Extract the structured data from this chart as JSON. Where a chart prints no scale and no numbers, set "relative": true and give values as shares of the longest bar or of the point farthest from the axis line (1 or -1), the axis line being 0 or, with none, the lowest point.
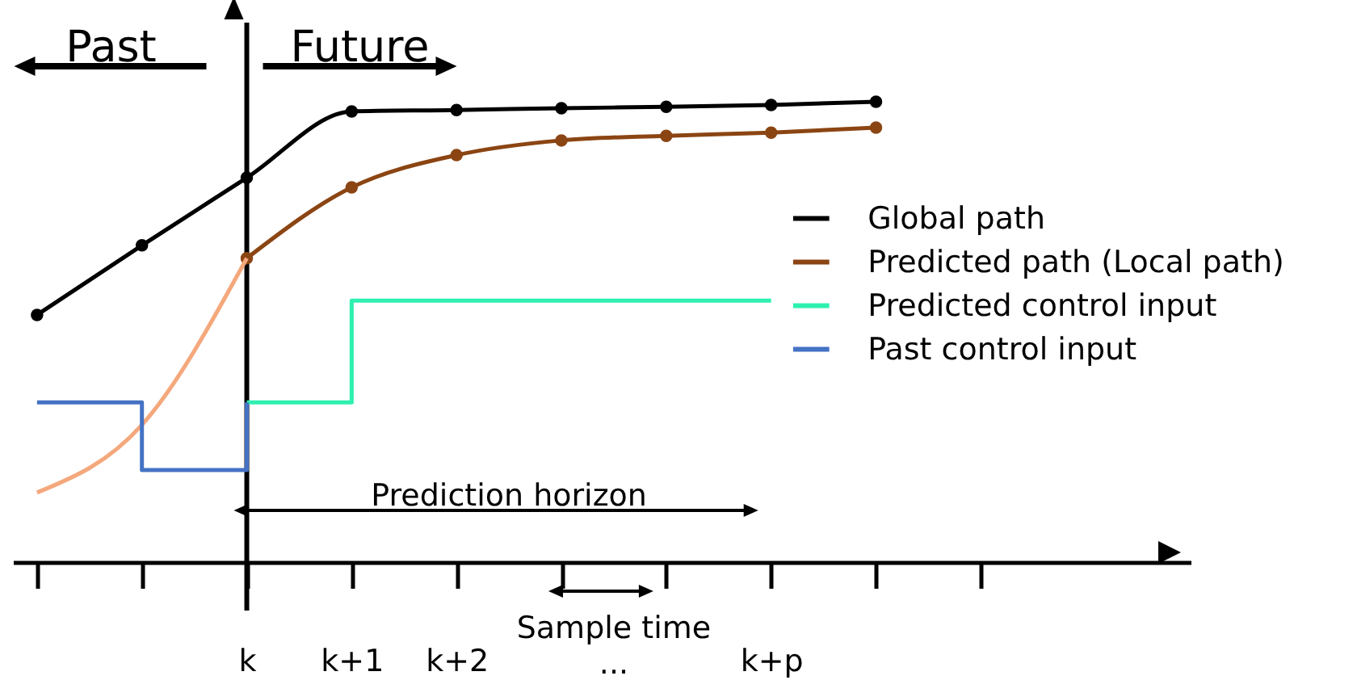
{
  "chart_data": {
    "type": "line",
    "relative": true,
    "marker": "circle",
    "line_style": "solid",
    "legend": "right",
    "grid": false,
    "categories": [
      null,
      null,
      "k",
      "k+1",
      "k+2",
      null,
      null,
      "k+p",
      null,
      null
    ],
    "ref_lines": [
      {
        "axis": "x",
        "value": "k",
        "color": "#000000"
      }
    ],
    "annotations": [
      "Past",
      "Future",
      "Prediction horizon",
      "Sample time",
      "..."
    ],
    "series": [
      {
        "name": "Global path",
        "color": "#000000",
        "values": [
          0.537,
          0.688,
          0.835,
          0.979,
          0.982,
          0.986,
          0.989,
          0.993,
          1,
          null
        ]
      },
      {
        "name": "Predicted path (Local path)",
        "color": "#8b4513",
        "values": [
          null,
          null,
          0.66,
          0.814,
          0.884,
          0.916,
          0.926,
          0.933,
          0.944,
          null
        ]
      },
      {
        "color": "#f4a87c",
        "marker": "none",
        "values": [
          0.151,
          0.298,
          0.66,
          null,
          null,
          null,
          null,
          null,
          null,
          null
        ]
      },
      {
        "name": "Predicted control input",
        "type": "step",
        "color": "#2ef0b0",
        "marker": "none",
        "values": [
          null,
          null,
          0.347,
          0.568,
          0.568,
          0.568,
          0.568,
          0.568,
          null,
          null
        ]
      },
      {
        "name": "Past control input",
        "type": "step",
        "color": "#4472c4",
        "marker": "none",
        "values": [
          0.347,
          0.2,
          0.347,
          null,
          null,
          null,
          null,
          null,
          null,
          null
        ]
      }
    ]
  }
}
